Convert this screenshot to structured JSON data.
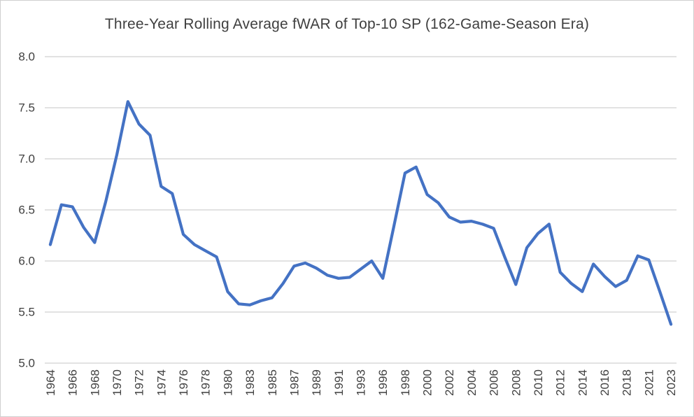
{
  "chart_data": {
    "type": "line",
    "title": "Three-Year Rolling Average fWAR of Top-10 SP (162-Game-Season Era)",
    "x": [
      1964,
      1965,
      1966,
      1967,
      1968,
      1969,
      1970,
      1971,
      1972,
      1973,
      1974,
      1975,
      1976,
      1977,
      1978,
      1979,
      1980,
      1982,
      1983,
      1984,
      1985,
      1986,
      1987,
      1988,
      1989,
      1990,
      1991,
      1992,
      1993,
      1995,
      1996,
      1997,
      1998,
      1999,
      2000,
      2001,
      2002,
      2003,
      2004,
      2005,
      2006,
      2007,
      2008,
      2009,
      2010,
      2011,
      2012,
      2013,
      2014,
      2015,
      2016,
      2017,
      2018,
      2019,
      2021,
      2022,
      2023
    ],
    "values": [
      6.16,
      6.55,
      6.53,
      6.33,
      6.18,
      6.58,
      7.04,
      7.56,
      7.34,
      7.23,
      6.73,
      6.66,
      6.26,
      6.16,
      6.1,
      6.04,
      5.7,
      5.58,
      5.57,
      5.61,
      5.64,
      5.78,
      5.95,
      5.98,
      5.93,
      5.86,
      5.83,
      5.84,
      5.92,
      6.0,
      5.83,
      6.34,
      6.86,
      6.92,
      6.65,
      6.57,
      6.43,
      6.38,
      6.39,
      6.36,
      6.32,
      6.04,
      5.77,
      6.13,
      6.27,
      6.36,
      5.89,
      5.78,
      5.7,
      5.97,
      5.85,
      5.75,
      5.81,
      6.05,
      6.01,
      5.7,
      5.38
    ],
    "x_tick_labels": [
      "1964",
      "1966",
      "1968",
      "1970",
      "1972",
      "1974",
      "1976",
      "1978",
      "1980",
      "1983",
      "1985",
      "1987",
      "1989",
      "1991",
      "1993",
      "1996",
      "1998",
      "2000",
      "2002",
      "2004",
      "2006",
      "2008",
      "2010",
      "2012",
      "2014",
      "2016",
      "2018",
      "2021",
      "2023"
    ],
    "y_tick_labels": [
      "8.0",
      "7.5",
      "7.0",
      "6.5",
      "6.0",
      "5.5",
      "5.0"
    ],
    "ylim": [
      5.0,
      8.0
    ],
    "xlabel": "",
    "ylabel": "",
    "legend": "none",
    "grid": "horizontal",
    "line_color": "#4472C4",
    "gridline_color": "#d9d9d9",
    "tick_label_color": "#404040",
    "title_color": "#3f3f3f",
    "x_label_rotation_deg": -90
  }
}
